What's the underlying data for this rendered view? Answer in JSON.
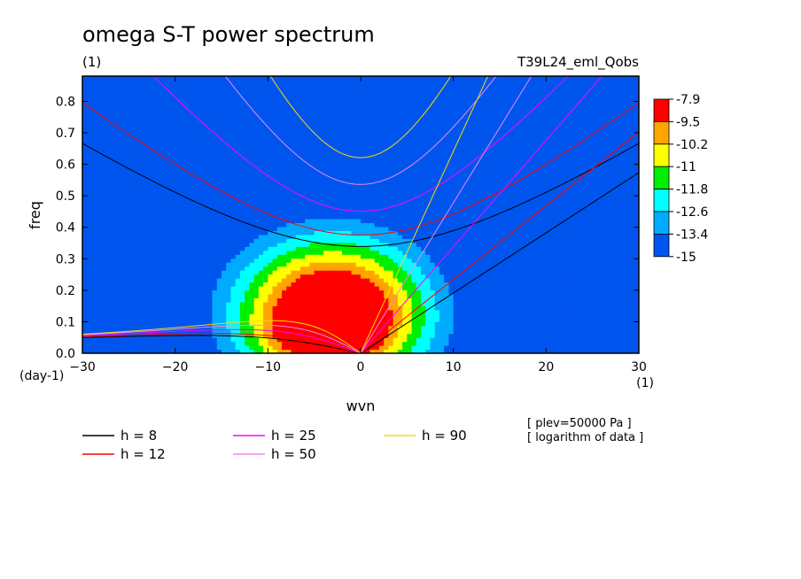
{
  "chart_data": {
    "type": "heatmap",
    "title": "omega S-T power spectrum",
    "subtitle_left": "(1)",
    "subtitle_right": "T39L24_eml_Qobs",
    "xlabel": "wvn",
    "ylabel": "freq",
    "x_unit": "(1)",
    "y_unit": "(day-1)",
    "xlim": [
      -30,
      30
    ],
    "ylim": [
      0,
      0.88
    ],
    "x_ticks": [
      -30,
      -20,
      -10,
      0,
      10,
      20,
      30
    ],
    "y_ticks": [
      0.0,
      0.1,
      0.2,
      0.3,
      0.4,
      0.5,
      0.6,
      0.7,
      0.8
    ],
    "x_tick_labels": [
      "−30",
      "−20",
      "−10",
      "0",
      "10",
      "20",
      "30"
    ],
    "y_tick_labels": [
      "0.0",
      "0.1",
      "0.2",
      "0.3",
      "0.4",
      "0.5",
      "0.6",
      "0.7",
      "0.8"
    ],
    "colorbar": {
      "labels": [
        "-7.9",
        "-9.5",
        "-10.2",
        "-11",
        "-11.8",
        "-12.6",
        "-13.4",
        "-15"
      ],
      "colors": [
        "#ff0000",
        "#ffa500",
        "#ffff00",
        "#00ee00",
        "#00ffff",
        "#00aaff",
        "#0055ee"
      ]
    },
    "field_model": {
      "peak": -7.9,
      "background": -15,
      "description_levels": "log power, high near wvn 0 low freq"
    },
    "series": [
      {
        "name": "h =  8",
        "depth_m": 8,
        "color": "#000000"
      },
      {
        "name": "h = 12",
        "depth_m": 12,
        "color": "#ff0000"
      },
      {
        "name": "h = 25",
        "depth_m": 25,
        "color": "#ff00ff"
      },
      {
        "name": "h = 50",
        "depth_m": 50,
        "color": "#ee88ee"
      },
      {
        "name": "h = 90",
        "depth_m": 90,
        "color": "#ffd700"
      }
    ],
    "notes": [
      "[ plev=50000 Pa ]",
      "[ logarithm of data ]"
    ]
  }
}
